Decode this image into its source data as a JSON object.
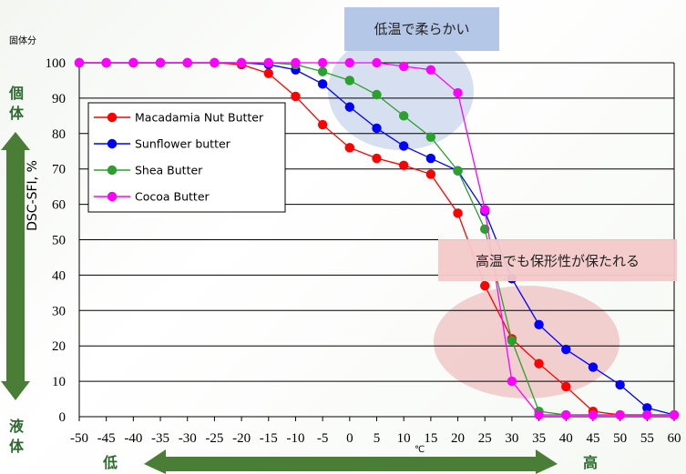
{
  "chart_data": {
    "type": "line",
    "ylabel": "DSC-SFI, %",
    "y_unit_label": "固体分",
    "xlabel": "℃",
    "xlim": [
      -50,
      60
    ],
    "ylim": [
      0,
      100
    ],
    "x_ticks": [
      -50,
      -45,
      -40,
      -35,
      -30,
      -25,
      -20,
      -15,
      -10,
      -5,
      0,
      5,
      10,
      15,
      20,
      25,
      30,
      35,
      40,
      45,
      50,
      55,
      60
    ],
    "y_ticks": [
      0,
      10,
      20,
      30,
      40,
      50,
      60,
      70,
      80,
      90,
      100
    ],
    "grid": true,
    "legend_position": "top-left",
    "series": [
      {
        "name": "Macadamia Nut Butter",
        "color": "#ff0000",
        "x": [
          -50,
          -45,
          -40,
          -35,
          -30,
          -25,
          -20,
          -15,
          -10,
          -5,
          0,
          5,
          10,
          15,
          20,
          25,
          30,
          35,
          40,
          45,
          50,
          55,
          60
        ],
        "y": [
          100,
          100,
          100,
          100,
          100,
          100,
          99.5,
          97,
          90.5,
          82.5,
          76,
          73,
          71,
          68.5,
          57.5,
          37,
          22,
          15,
          8.5,
          1.5,
          0.5,
          0.5,
          0.5
        ]
      },
      {
        "name": "Sunflower butter",
        "color": "#0000ff",
        "x": [
          -50,
          -45,
          -40,
          -35,
          -30,
          -25,
          -20,
          -15,
          -10,
          -5,
          0,
          5,
          10,
          15,
          20,
          25,
          30,
          35,
          40,
          45,
          50,
          55,
          60
        ],
        "y": [
          100,
          100,
          100,
          100,
          100,
          100,
          100,
          99.5,
          98,
          94,
          87.5,
          81.5,
          76.5,
          73,
          69.5,
          58,
          39,
          26,
          19,
          14,
          9,
          2.5,
          0.5
        ]
      },
      {
        "name": "Shea Butter",
        "color": "#2ca02c",
        "x": [
          -50,
          -45,
          -40,
          -35,
          -30,
          -25,
          -20,
          -15,
          -10,
          -5,
          0,
          5,
          10,
          15,
          20,
          25,
          30,
          35,
          40,
          45,
          50,
          55,
          60
        ],
        "y": [
          100,
          100,
          100,
          100,
          100,
          100,
          100,
          100,
          99.5,
          97.5,
          95,
          91,
          85,
          79,
          69.5,
          53,
          21.5,
          1.5,
          0.5,
          0.5,
          0.5,
          0.5,
          0.5
        ]
      },
      {
        "name": "Cocoa Butter",
        "color": "#ff00ff",
        "x": [
          -50,
          -45,
          -40,
          -35,
          -30,
          -25,
          -20,
          -15,
          -10,
          -5,
          0,
          5,
          10,
          15,
          20,
          25,
          30,
          35,
          40,
          45,
          50,
          55,
          60
        ],
        "y": [
          100,
          100,
          100,
          100,
          100,
          100,
          100,
          100,
          100,
          100,
          100,
          100,
          99,
          98,
          91.5,
          58.5,
          10,
          0.5,
          0.5,
          0.5,
          0.5,
          0.5,
          0.5
        ]
      }
    ],
    "annotations": {
      "low_temp_note": "低温で柔らかい",
      "high_temp_note": "高温でも保形性が保たれる",
      "solid_label": "個\n体",
      "liquid_label": "液\n体",
      "low_label": "低",
      "high_label": "高"
    }
  },
  "colors": {
    "arrow_green": "#4a7e37",
    "callout_blue_bg": "#b4c7e7",
    "callout_pink_bg": "#f4c9c9",
    "ellipse_blue": "#c8d6ec",
    "ellipse_pink": "#efc4c4"
  }
}
